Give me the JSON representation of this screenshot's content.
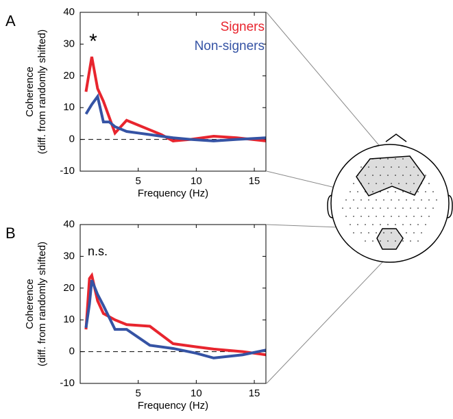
{
  "chart_data": [
    {
      "type": "line",
      "panel": "A",
      "annotation": "*",
      "xlabel": "Frequency (Hz)",
      "ylabel": [
        "Coherence",
        "(diff. from randomly shifted)"
      ],
      "xlim": [
        0,
        16
      ],
      "ylim": [
        -10,
        40
      ],
      "xticks": [
        5,
        10,
        15
      ],
      "yticks": [
        -10,
        0,
        10,
        20,
        30,
        40
      ],
      "reference_line": 0,
      "legend": "top-right",
      "x": [
        0.5,
        1,
        1.5,
        2,
        2.5,
        3,
        4,
        5,
        6,
        7,
        8,
        9.5,
        11.5,
        13.5,
        16
      ],
      "series": [
        {
          "name": "Signers",
          "color": "#e8252e",
          "values": [
            15,
            26,
            16,
            12,
            7,
            2,
            6,
            4.5,
            3,
            1.5,
            -0.5,
            0,
            1,
            0.5,
            -0.5
          ]
        },
        {
          "name": "Non-signers",
          "color": "#3553a4",
          "values": [
            8,
            11,
            13.5,
            5.5,
            5.5,
            4,
            2.5,
            2,
            1.5,
            1,
            0.5,
            0,
            -0.5,
            0,
            0.5
          ]
        }
      ]
    },
    {
      "type": "line",
      "panel": "B",
      "annotation": "n.s.",
      "xlabel": "Frequency (Hz)",
      "ylabel": [
        "Coherence",
        "(diff. from randomly shifted)"
      ],
      "xlim": [
        0,
        16
      ],
      "ylim": [
        -10,
        40
      ],
      "xticks": [
        5,
        10,
        15
      ],
      "yticks": [
        -10,
        0,
        10,
        20,
        30,
        40
      ],
      "reference_line": 0,
      "x": [
        0.5,
        0.8,
        1,
        1.5,
        2,
        3,
        4,
        6,
        8,
        10,
        11.5,
        14,
        16
      ],
      "series": [
        {
          "color": "#e8252e",
          "values": [
            7,
            23,
            24,
            16,
            12,
            10,
            8.5,
            8,
            2.5,
            1.5,
            0.8,
            0,
            -1
          ]
        },
        {
          "color": "#3553a4",
          "values": [
            7.5,
            15,
            22.5,
            18,
            14.5,
            7,
            7,
            2,
            1,
            -0.5,
            -2,
            -1,
            0.5
          ]
        }
      ]
    }
  ]
}
